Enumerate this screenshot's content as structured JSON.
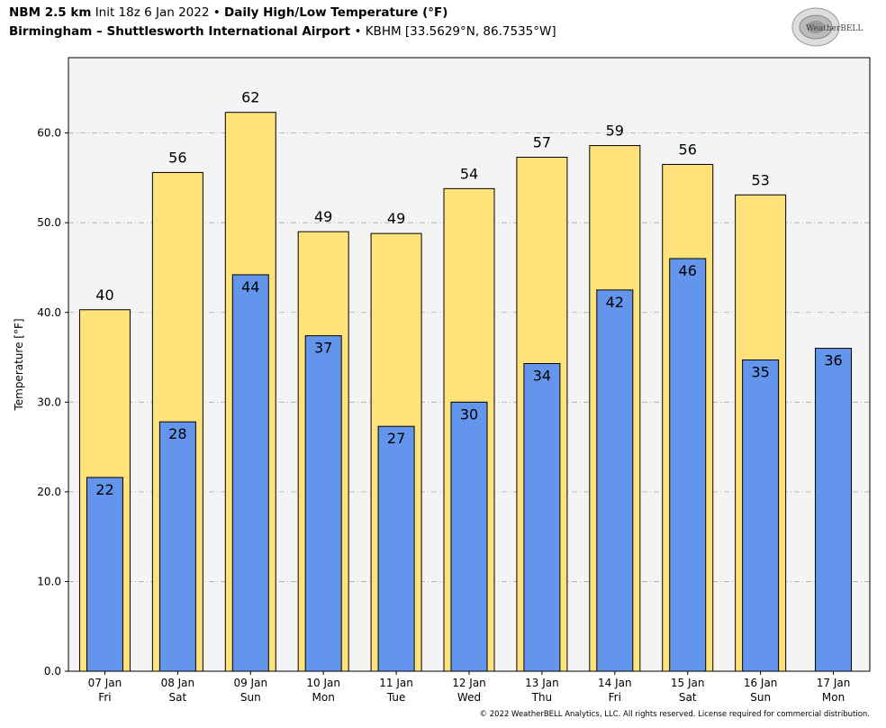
{
  "header": {
    "model": "NBM 2.5 km",
    "init": "Init 18z 6 Jan 2022",
    "product": "Daily High/Low Temperature (°F)",
    "station_name": "Birmingham – Shuttlesworth International Airport",
    "station_id": "KBHM [33.5629°N, 86.7535°W]",
    "separator": "•"
  },
  "logo": {
    "text": "WeatherBELL"
  },
  "footer": {
    "copyright": "© 2022 WeatherBELL Analytics, LLC. All rights reserved. License required for commercial distribution."
  },
  "chart_data": {
    "type": "bar",
    "title": "Daily High/Low Temperature (°F)",
    "xlabel": "",
    "ylabel": "Temperature [°F]",
    "ylim": [
      0,
      68.4
    ],
    "yticks": [
      0,
      10,
      20,
      30,
      40,
      50,
      60
    ],
    "ytick_labels": [
      "0.0",
      "10.0",
      "20.0",
      "30.0",
      "40.0",
      "50.0",
      "60.0"
    ],
    "grid": true,
    "categories": [
      [
        "07 Jan",
        "Fri"
      ],
      [
        "08 Jan",
        "Sat"
      ],
      [
        "09 Jan",
        "Sun"
      ],
      [
        "10 Jan",
        "Mon"
      ],
      [
        "11 Jan",
        "Tue"
      ],
      [
        "12 Jan",
        "Wed"
      ],
      [
        "13 Jan",
        "Thu"
      ],
      [
        "14 Jan",
        "Fri"
      ],
      [
        "15 Jan",
        "Sat"
      ],
      [
        "16 Jan",
        "Sun"
      ],
      [
        "17 Jan",
        "Mon"
      ]
    ],
    "series": [
      {
        "key": "high",
        "color": "#FFE27A",
        "values": [
          40.3,
          55.6,
          62.3,
          49.0,
          48.8,
          53.8,
          57.3,
          58.6,
          56.5,
          53.1,
          null
        ],
        "labels": [
          "40",
          "56",
          "62",
          "49",
          "49",
          "54",
          "57",
          "59",
          "56",
          "53",
          ""
        ]
      },
      {
        "key": "low",
        "color": "#6495ED",
        "values": [
          21.6,
          27.8,
          44.2,
          37.4,
          27.3,
          30.0,
          34.3,
          42.5,
          46.0,
          34.7,
          36.0
        ],
        "labels": [
          "22",
          "28",
          "44",
          "37",
          "27",
          "30",
          "34",
          "42",
          "46",
          "35",
          "36"
        ]
      }
    ],
    "plot_background": "#F4F4F4"
  }
}
